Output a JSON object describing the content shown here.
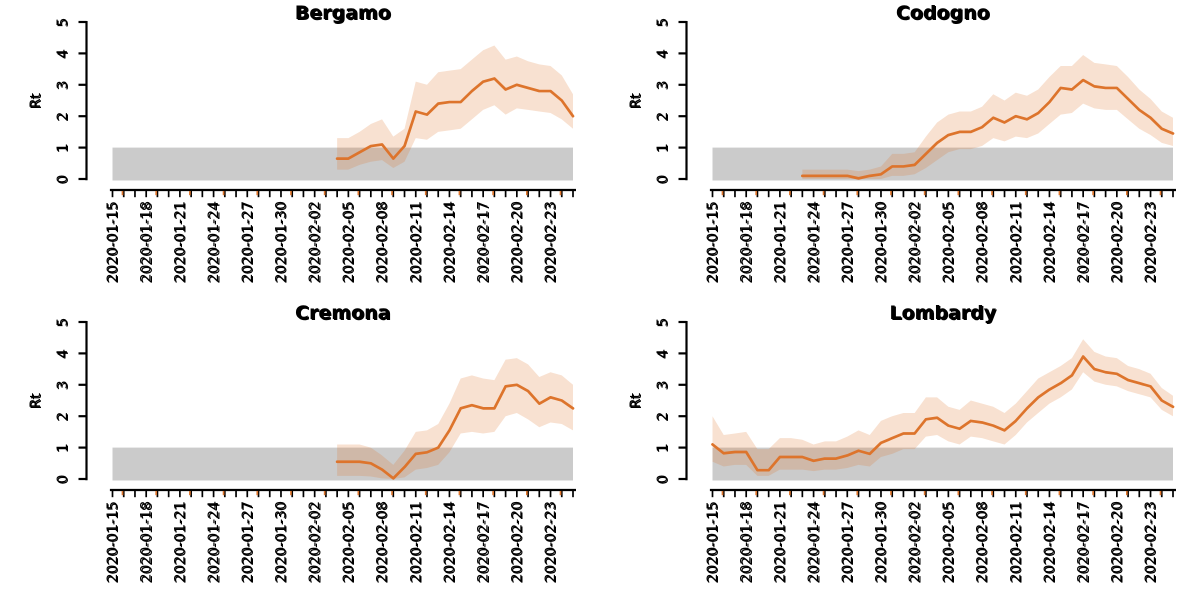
{
  "style": {
    "line_color": "#DD742C",
    "band_color": "#DF762D",
    "band_opacity": 0.22,
    "threshold_color": "#CBCBCB",
    "text_color": "#000000",
    "background": "#FFFFFF"
  },
  "axis": {
    "ylabel": "Rt",
    "ylim": [
      0,
      5
    ],
    "yticks": [
      0,
      1,
      2,
      3,
      4,
      5
    ],
    "x_start": "2020-01-15",
    "x_end": "2020-02-25",
    "x_label_dates": [
      "2020-01-15",
      "2020-01-18",
      "2020-01-21",
      "2020-01-24",
      "2020-01-27",
      "2020-01-30",
      "2020-02-02",
      "2020-02-05",
      "2020-02-08",
      "2020-02-11",
      "2020-02-14",
      "2020-02-17",
      "2020-02-20",
      "2020-02-23"
    ]
  },
  "chart_data": [
    {
      "type": "line",
      "title": "Bergamo",
      "xlabel": "",
      "ylabel": "Rt",
      "ylim": [
        0,
        5
      ],
      "grid": false,
      "legend": null,
      "threshold_band": {
        "from": 0,
        "to": 1
      },
      "x": [
        "2020-02-04",
        "2020-02-05",
        "2020-02-06",
        "2020-02-07",
        "2020-02-08",
        "2020-02-09",
        "2020-02-10",
        "2020-02-11",
        "2020-02-12",
        "2020-02-13",
        "2020-02-14",
        "2020-02-15",
        "2020-02-16",
        "2020-02-17",
        "2020-02-18",
        "2020-02-19",
        "2020-02-20",
        "2020-02-21",
        "2020-02-22",
        "2020-02-23",
        "2020-02-24",
        "2020-02-25"
      ],
      "rt": [
        0.65,
        0.65,
        0.85,
        1.05,
        1.1,
        0.65,
        1.05,
        2.15,
        2.05,
        2.4,
        2.45,
        2.45,
        2.8,
        3.1,
        3.2,
        2.85,
        3.0,
        2.9,
        2.8,
        2.8,
        2.5,
        2.0
      ],
      "lower": [
        0.3,
        0.3,
        0.45,
        0.55,
        0.6,
        0.35,
        0.55,
        1.3,
        1.25,
        1.5,
        1.55,
        1.6,
        1.9,
        2.2,
        2.35,
        2.05,
        2.25,
        2.2,
        2.15,
        2.1,
        1.9,
        1.6
      ],
      "upper": [
        1.3,
        1.3,
        1.5,
        1.75,
        1.9,
        1.35,
        1.6,
        3.1,
        3.0,
        3.4,
        3.45,
        3.5,
        3.8,
        4.1,
        4.25,
        3.8,
        3.9,
        3.75,
        3.65,
        3.6,
        3.3,
        2.7
      ]
    },
    {
      "type": "line",
      "title": "Codogno",
      "xlabel": "",
      "ylabel": "Rt",
      "ylim": [
        0,
        5
      ],
      "grid": false,
      "legend": null,
      "threshold_band": {
        "from": 0,
        "to": 1
      },
      "x": [
        "2020-01-23",
        "2020-01-24",
        "2020-01-25",
        "2020-01-26",
        "2020-01-27",
        "2020-01-28",
        "2020-01-29",
        "2020-01-30",
        "2020-01-31",
        "2020-02-01",
        "2020-02-02",
        "2020-02-03",
        "2020-02-04",
        "2020-02-05",
        "2020-02-06",
        "2020-02-07",
        "2020-02-08",
        "2020-02-09",
        "2020-02-10",
        "2020-02-11",
        "2020-02-12",
        "2020-02-13",
        "2020-02-14",
        "2020-02-15",
        "2020-02-16",
        "2020-02-17",
        "2020-02-18",
        "2020-02-19",
        "2020-02-20",
        "2020-02-21",
        "2020-02-22",
        "2020-02-23",
        "2020-02-24",
        "2020-02-25"
      ],
      "rt": [
        0.1,
        0.1,
        0.1,
        0.1,
        0.1,
        0.02,
        0.1,
        0.15,
        0.4,
        0.4,
        0.45,
        0.8,
        1.15,
        1.4,
        1.5,
        1.5,
        1.65,
        1.95,
        1.8,
        2.0,
        1.9,
        2.1,
        2.45,
        2.9,
        2.85,
        3.15,
        2.95,
        2.9,
        2.9,
        2.55,
        2.2,
        1.95,
        1.6,
        1.45
      ],
      "lower": [
        0.0,
        0.0,
        0.0,
        0.0,
        0.0,
        0.0,
        0.0,
        0.0,
        0.1,
        0.1,
        0.15,
        0.35,
        0.6,
        0.85,
        0.95,
        0.95,
        1.05,
        1.3,
        1.2,
        1.35,
        1.3,
        1.45,
        1.75,
        2.05,
        2.1,
        2.4,
        2.25,
        2.2,
        2.2,
        1.9,
        1.6,
        1.4,
        1.15,
        1.05
      ],
      "upper": [
        0.3,
        0.3,
        0.3,
        0.3,
        0.3,
        0.25,
        0.3,
        0.4,
        0.8,
        0.8,
        0.85,
        1.35,
        1.8,
        2.05,
        2.15,
        2.15,
        2.3,
        2.7,
        2.5,
        2.75,
        2.65,
        2.85,
        3.25,
        3.6,
        3.6,
        3.95,
        3.7,
        3.65,
        3.6,
        3.25,
        2.85,
        2.55,
        2.15,
        1.95
      ]
    },
    {
      "type": "line",
      "title": "Cremona",
      "xlabel": "",
      "ylabel": "Rt",
      "ylim": [
        0,
        5
      ],
      "grid": false,
      "legend": null,
      "threshold_band": {
        "from": 0,
        "to": 1
      },
      "x": [
        "2020-02-04",
        "2020-02-05",
        "2020-02-06",
        "2020-02-07",
        "2020-02-08",
        "2020-02-09",
        "2020-02-10",
        "2020-02-11",
        "2020-02-12",
        "2020-02-13",
        "2020-02-14",
        "2020-02-15",
        "2020-02-16",
        "2020-02-17",
        "2020-02-18",
        "2020-02-19",
        "2020-02-20",
        "2020-02-21",
        "2020-02-22",
        "2020-02-23",
        "2020-02-24",
        "2020-02-25"
      ],
      "rt": [
        0.55,
        0.55,
        0.55,
        0.5,
        0.3,
        0.02,
        0.38,
        0.8,
        0.85,
        1.0,
        1.55,
        2.25,
        2.35,
        2.25,
        2.25,
        2.95,
        3.0,
        2.8,
        2.4,
        2.6,
        2.5,
        2.25
      ],
      "lower": [
        0.1,
        0.1,
        0.1,
        0.08,
        0.02,
        0.0,
        0.05,
        0.3,
        0.35,
        0.45,
        0.85,
        1.45,
        1.5,
        1.45,
        1.5,
        2.0,
        2.1,
        1.9,
        1.65,
        1.8,
        1.75,
        1.55
      ],
      "upper": [
        1.1,
        1.1,
        1.1,
        1.0,
        0.75,
        0.45,
        0.9,
        1.5,
        1.55,
        1.75,
        2.4,
        3.2,
        3.3,
        3.2,
        3.15,
        3.8,
        3.85,
        3.65,
        3.25,
        3.4,
        3.3,
        3.0
      ]
    },
    {
      "type": "line",
      "title": "Lombardy",
      "xlabel": "",
      "ylabel": "Rt",
      "ylim": [
        0,
        5
      ],
      "grid": false,
      "legend": null,
      "threshold_band": {
        "from": 0,
        "to": 1
      },
      "x": [
        "2020-01-15",
        "2020-01-16",
        "2020-01-17",
        "2020-01-18",
        "2020-01-19",
        "2020-01-20",
        "2020-01-21",
        "2020-01-22",
        "2020-01-23",
        "2020-01-24",
        "2020-01-25",
        "2020-01-26",
        "2020-01-27",
        "2020-01-28",
        "2020-01-29",
        "2020-01-30",
        "2020-01-31",
        "2020-02-01",
        "2020-02-02",
        "2020-02-03",
        "2020-02-04",
        "2020-02-05",
        "2020-02-06",
        "2020-02-07",
        "2020-02-08",
        "2020-02-09",
        "2020-02-10",
        "2020-02-11",
        "2020-02-12",
        "2020-02-13",
        "2020-02-14",
        "2020-02-15",
        "2020-02-16",
        "2020-02-17",
        "2020-02-18",
        "2020-02-19",
        "2020-02-20",
        "2020-02-21",
        "2020-02-22",
        "2020-02-23",
        "2020-02-24",
        "2020-02-25"
      ],
      "rt": [
        1.1,
        0.82,
        0.86,
        0.86,
        0.28,
        0.28,
        0.7,
        0.7,
        0.7,
        0.58,
        0.65,
        0.65,
        0.75,
        0.9,
        0.8,
        1.15,
        1.3,
        1.45,
        1.45,
        1.9,
        1.95,
        1.7,
        1.6,
        1.85,
        1.8,
        1.7,
        1.55,
        1.85,
        2.25,
        2.6,
        2.85,
        3.05,
        3.3,
        3.9,
        3.5,
        3.4,
        3.35,
        3.15,
        3.05,
        2.95,
        2.5,
        2.3
      ],
      "lower": [
        0.55,
        0.4,
        0.45,
        0.45,
        0.1,
        0.1,
        0.3,
        0.3,
        0.3,
        0.25,
        0.3,
        0.3,
        0.35,
        0.45,
        0.4,
        0.7,
        0.8,
        0.95,
        0.95,
        1.35,
        1.4,
        1.2,
        1.1,
        1.35,
        1.3,
        1.2,
        1.1,
        1.4,
        1.8,
        2.1,
        2.4,
        2.6,
        2.85,
        3.4,
        3.1,
        3.0,
        2.95,
        2.8,
        2.7,
        2.6,
        2.2,
        2.0
      ],
      "upper": [
        2.0,
        1.4,
        1.45,
        1.5,
        0.95,
        0.95,
        1.3,
        1.3,
        1.25,
        1.1,
        1.2,
        1.2,
        1.35,
        1.55,
        1.4,
        1.85,
        2.0,
        2.1,
        2.1,
        2.6,
        2.6,
        2.3,
        2.2,
        2.5,
        2.4,
        2.3,
        2.1,
        2.4,
        2.8,
        3.2,
        3.4,
        3.6,
        3.85,
        4.45,
        4.05,
        3.9,
        3.85,
        3.6,
        3.5,
        3.35,
        2.9,
        2.65
      ]
    }
  ]
}
